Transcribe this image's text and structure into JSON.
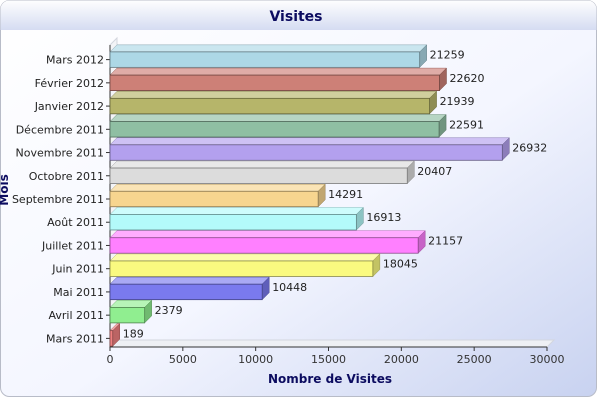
{
  "chart_data": {
    "type": "bar",
    "orientation": "horizontal",
    "title": "Visites",
    "xlabel": "Nombre de Visites",
    "ylabel": "Mois",
    "xlim": [
      0,
      30000
    ],
    "xticks": [
      "0",
      "5000",
      "10000",
      "15000",
      "20000",
      "25000",
      "30000"
    ],
    "grid": false,
    "legend": "none",
    "categories": [
      "Mars 2012",
      "Février 2012",
      "Janvier 2012",
      "Décembre 2011",
      "Novembre 2011",
      "Octobre 2011",
      "Septembre 2011",
      "Août 2011",
      "Juillet 2011",
      "Juin 2011",
      "Mai 2011",
      "Avril 2011",
      "Mars 2011"
    ],
    "values": [
      21259,
      22620,
      21939,
      22591,
      26932,
      20407,
      14291,
      16913,
      21157,
      18045,
      10448,
      2379,
      189
    ],
    "value_labels": [
      "21259",
      "22620",
      "21939",
      "22591",
      "26932",
      "20407",
      "14291",
      "16913",
      "21157",
      "18045",
      "10448",
      "2379",
      "189"
    ],
    "colors": [
      "#add8e6",
      "#cd8077",
      "#b6b56a",
      "#8fbfa3",
      "#b3a0ee",
      "#dcdcdc",
      "#f7d58f",
      "#b3fafa",
      "#ff80ff",
      "#fafa80",
      "#7a7aee",
      "#90ee90",
      "#f08080"
    ]
  }
}
